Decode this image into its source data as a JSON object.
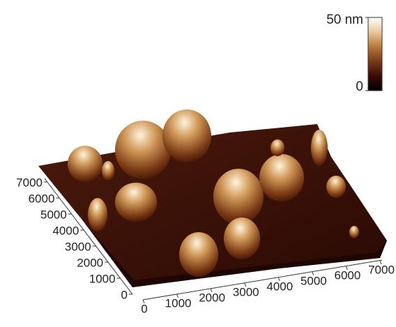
{
  "chart_data": {
    "type": "surface3d",
    "xlim": [
      0,
      7000
    ],
    "xticks": [
      0,
      1000,
      2000,
      3000,
      4000,
      5000,
      6000,
      7000
    ],
    "ylim": [
      0,
      7000
    ],
    "yticks": [
      0,
      1000,
      2000,
      3000,
      4000,
      5000,
      6000,
      7000
    ],
    "zlim": [
      0,
      50
    ],
    "zticks": [
      0,
      {
        "value": 50,
        "label": "50 nm"
      }
    ],
    "colormap": [
      "#000000",
      "#3a0a05",
      "#7a3a18",
      "#b8783a",
      "#e8c89a",
      "#ffffff"
    ]
  }
}
